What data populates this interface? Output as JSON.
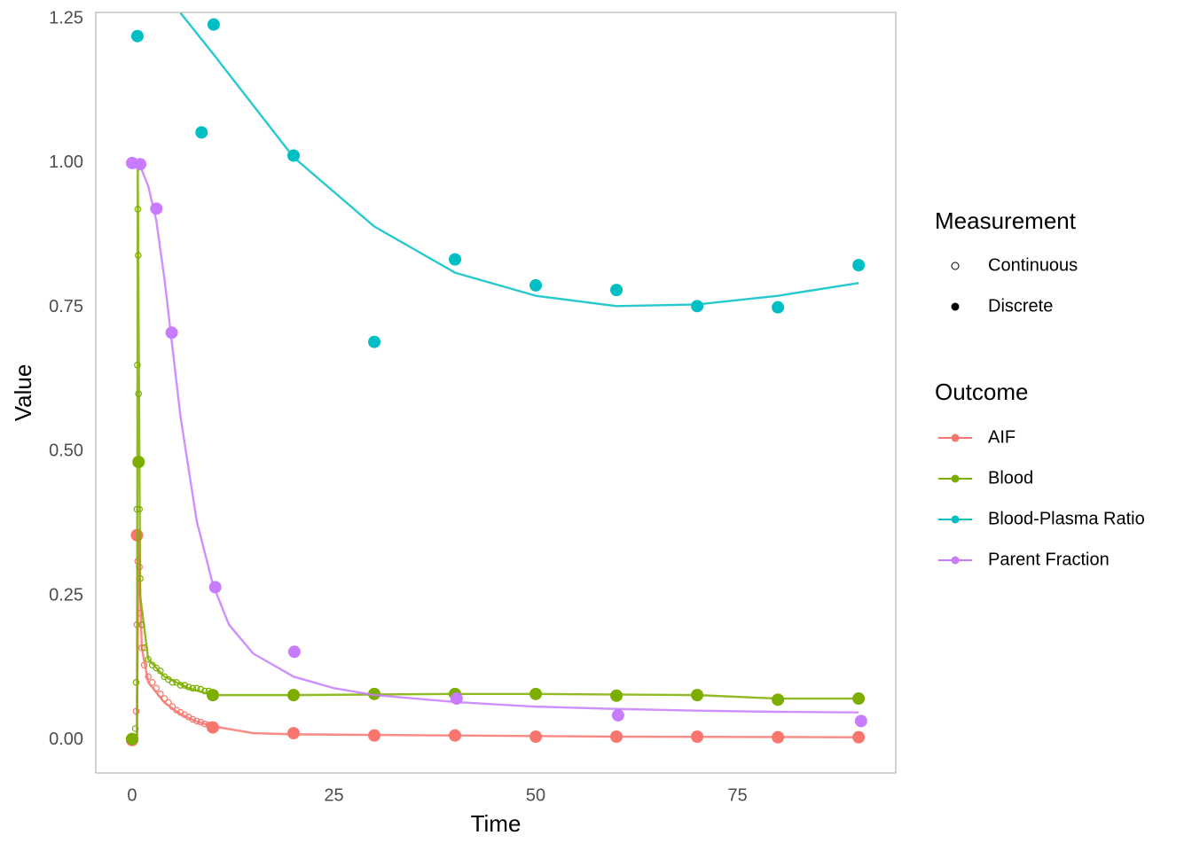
{
  "chart_data": {
    "type": "scatter",
    "xlabel": "Time",
    "ylabel": "Value",
    "xlim": [
      -4.5,
      94.6
    ],
    "ylim": [
      -0.057,
      1.261
    ],
    "xticks": [
      0,
      25,
      50,
      75
    ],
    "yticks": [
      {
        "value": 0,
        "label": "0.00"
      },
      {
        "value": 0.25,
        "label": "0.25"
      },
      {
        "value": 0.5,
        "label": "0.50"
      },
      {
        "value": 0.75,
        "label": "0.75"
      },
      {
        "value": 1,
        "label": "1.00"
      },
      {
        "value": 1.25,
        "label": "1.25"
      }
    ],
    "grid": true,
    "measurement_legend": {
      "title": "Measurement",
      "entries": [
        "Continuous",
        "Discrete"
      ]
    },
    "legend_title": "Outcome",
    "series": [
      {
        "name": "AIF",
        "color": "#F8766D",
        "discrete": {
          "x": [
            0,
            0.6,
            10,
            20,
            30,
            40,
            50,
            60,
            70,
            80,
            90
          ],
          "values": [
            0,
            0.355,
            0.022,
            0.012,
            0.008,
            0.008,
            0.006,
            0.006,
            0.006,
            0.005,
            0.005
          ]
        },
        "continuous": {
          "x": [
            0.3,
            0.5,
            0.6,
            0.7,
            0.8,
            0.9,
            1.0,
            1.2,
            1.5,
            2,
            2.5,
            3,
            3.5,
            4,
            4.5,
            5,
            5.5,
            6,
            6.5,
            7,
            7.5,
            8,
            8.5,
            9,
            9.5,
            10
          ],
          "values": [
            0.0,
            0.05,
            0.2,
            0.31,
            0.35,
            0.3,
            0.22,
            0.16,
            0.13,
            0.11,
            0.1,
            0.09,
            0.08,
            0.072,
            0.065,
            0.058,
            0.052,
            0.048,
            0.044,
            0.04,
            0.036,
            0.033,
            0.031,
            0.028,
            0.026,
            0.024
          ]
        },
        "fit": {
          "x": [
            0,
            0.6,
            0.8,
            1.2,
            2,
            4,
            6,
            8,
            10,
            15,
            20,
            40,
            60,
            90
          ],
          "values": [
            0,
            0,
            0.35,
            0.16,
            0.1,
            0.065,
            0.045,
            0.032,
            0.024,
            0.012,
            0.01,
            0.008,
            0.006,
            0.005
          ]
        }
      },
      {
        "name": "Blood",
        "color": "#7CAE00",
        "discrete": {
          "x": [
            0,
            0.8,
            10,
            20,
            30,
            40,
            50,
            60,
            70,
            80,
            90
          ],
          "values": [
            0.002,
            0.482,
            0.078,
            0.078,
            0.08,
            0.08,
            0.08,
            0.077,
            0.078,
            0.07,
            0.072
          ]
        },
        "continuous": {
          "x": [
            0.2,
            0.4,
            0.5,
            0.6,
            0.65,
            0.7,
            0.75,
            0.8,
            0.9,
            1.0,
            1.2,
            1.5,
            2,
            2.5,
            3,
            3.5,
            4,
            4.5,
            5,
            5.5,
            6,
            6.5,
            7,
            7.5,
            8,
            8.5,
            9,
            9.5,
            10
          ],
          "values": [
            0.0,
            0.02,
            0.1,
            0.4,
            0.65,
            0.92,
            0.84,
            0.6,
            0.4,
            0.28,
            0.2,
            0.16,
            0.14,
            0.13,
            0.125,
            0.12,
            0.11,
            0.105,
            0.1,
            0.1,
            0.095,
            0.095,
            0.092,
            0.09,
            0.09,
            0.088,
            0.085,
            0.085,
            0.082
          ]
        },
        "fit": {
          "x": [
            0,
            0.6,
            0.7,
            1.0,
            2,
            4,
            7,
            10,
            20,
            40,
            50,
            70,
            80,
            90
          ],
          "values": [
            0,
            0,
            1.0,
            0.25,
            0.14,
            0.11,
            0.09,
            0.078,
            0.078,
            0.08,
            0.08,
            0.078,
            0.072,
            0.072
          ]
        }
      },
      {
        "name": "Blood-Plasma Ratio",
        "color": "#00BFC4",
        "discrete": {
          "x": [
            0.66,
            8.6,
            10.1,
            20,
            30,
            40,
            50,
            60,
            70,
            80,
            90
          ],
          "values": [
            1.22,
            1.053,
            1.24,
            1.013,
            0.69,
            0.833,
            0.788,
            0.78,
            0.752,
            0.75,
            0.823
          ]
        },
        "continuous": {
          "x": [],
          "values": []
        },
        "fit": {
          "x": [
            6,
            10,
            20,
            30,
            40,
            50,
            60,
            70,
            80,
            90
          ],
          "values": [
            1.26,
            1.19,
            1.01,
            0.89,
            0.81,
            0.77,
            0.752,
            0.755,
            0.77,
            0.792
          ]
        }
      },
      {
        "name": "Parent Fraction",
        "color": "#C77CFF",
        "discrete": {
          "x": [
            0,
            1,
            3,
            4.9,
            10.3,
            20.1,
            40.2,
            60.2,
            90.3
          ],
          "values": [
            1.0,
            0.998,
            0.921,
            0.706,
            0.265,
            0.153,
            0.072,
            0.043,
            0.033
          ]
        },
        "continuous": {
          "x": [],
          "values": []
        },
        "fit": {
          "x": [
            0,
            1,
            2,
            3,
            4,
            5,
            6,
            8,
            10,
            12,
            15,
            20,
            25,
            30,
            40,
            50,
            60,
            70,
            80,
            90
          ],
          "values": [
            1.0,
            0.995,
            0.96,
            0.9,
            0.8,
            0.68,
            0.56,
            0.38,
            0.27,
            0.2,
            0.15,
            0.11,
            0.09,
            0.078,
            0.066,
            0.058,
            0.054,
            0.051,
            0.049,
            0.048
          ]
        }
      }
    ]
  }
}
